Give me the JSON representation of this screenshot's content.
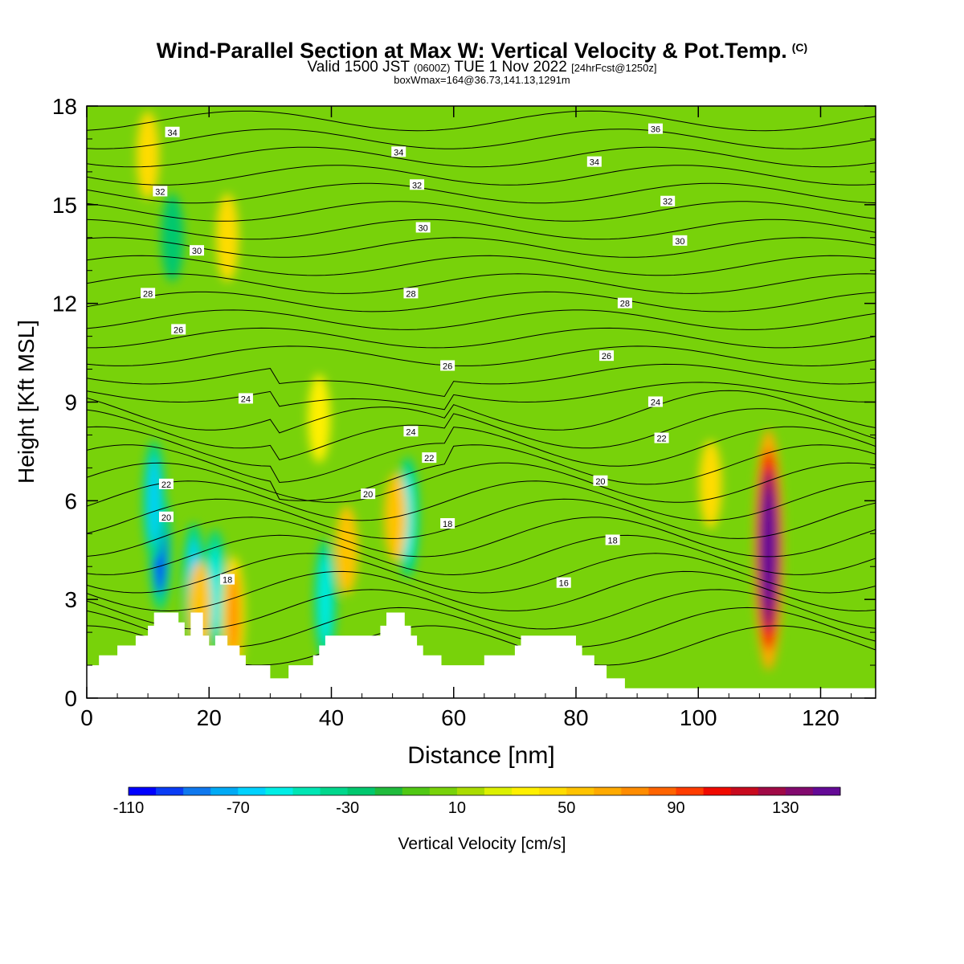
{
  "title": {
    "main": "Wind-Parallel Section at Max W: Vertical Velocity & Pot.Temp.",
    "copyright": "(C)",
    "valid_prefix": "Valid 1500 JST",
    "valid_utc": "(0600Z)",
    "valid_date": "TUE 1 Nov 2022",
    "forecast": "[24hrFcst@1250z]",
    "boxwmax": "boxWmax=164@36.73,141.13,1291m"
  },
  "chart_data": {
    "type": "heatmap",
    "xlabel": "Distance [nm]",
    "ylabel": "Height [Kft MSL]",
    "xlim": [
      0,
      129
    ],
    "ylim": [
      0,
      18
    ],
    "xticks": [
      0,
      20,
      40,
      60,
      80,
      100,
      120
    ],
    "yticks": [
      0,
      3,
      6,
      9,
      12,
      15,
      18
    ],
    "colorbar": {
      "label": "Vertical Velocity [cm/s]",
      "range": [
        -110,
        150
      ],
      "step": 10,
      "tick_labels": [
        -110,
        -70,
        -30,
        10,
        50,
        90,
        130
      ],
      "colors": [
        "#0000ff",
        "#0a3cf5",
        "#0f78ee",
        "#00aaf5",
        "#00d2ff",
        "#00eee6",
        "#00e6b4",
        "#00d78c",
        "#00c86e",
        "#20bb3c",
        "#50c814",
        "#78d20a",
        "#aadc00",
        "#dcf000",
        "#fff000",
        "#ffdc00",
        "#ffc300",
        "#ffaa00",
        "#ff8c00",
        "#ff6400",
        "#ff3c00",
        "#f00a00",
        "#c80a1e",
        "#a00a46",
        "#820a6e",
        "#640a96"
      ]
    },
    "background_value_cm_s": 0,
    "terrain_kft": [
      [
        0,
        1.0
      ],
      [
        2,
        1.0
      ],
      [
        2,
        1.3
      ],
      [
        5,
        1.3
      ],
      [
        5,
        1.6
      ],
      [
        8,
        1.6
      ],
      [
        8,
        1.9
      ],
      [
        10,
        1.9
      ],
      [
        10,
        2.2
      ],
      [
        11,
        2.2
      ],
      [
        11,
        2.6
      ],
      [
        15,
        2.6
      ],
      [
        15,
        2.3
      ],
      [
        16,
        2.3
      ],
      [
        16,
        1.9
      ],
      [
        17,
        1.9
      ],
      [
        17,
        2.6
      ],
      [
        19,
        2.6
      ],
      [
        19,
        1.9
      ],
      [
        20,
        1.9
      ],
      [
        20,
        1.6
      ],
      [
        21,
        1.6
      ],
      [
        21,
        1.9
      ],
      [
        23,
        1.9
      ],
      [
        23,
        1.6
      ],
      [
        25,
        1.6
      ],
      [
        25,
        1.3
      ],
      [
        26,
        1.3
      ],
      [
        26,
        1.0
      ],
      [
        30,
        1.0
      ],
      [
        30,
        0.6
      ],
      [
        33,
        0.6
      ],
      [
        33,
        1.0
      ],
      [
        37,
        1.0
      ],
      [
        37,
        1.3
      ],
      [
        38,
        1.3
      ],
      [
        38,
        1.6
      ],
      [
        39,
        1.6
      ],
      [
        39,
        1.9
      ],
      [
        48,
        1.9
      ],
      [
        48,
        2.2
      ],
      [
        49,
        2.2
      ],
      [
        49,
        2.6
      ],
      [
        52,
        2.6
      ],
      [
        52,
        2.2
      ],
      [
        53,
        2.2
      ],
      [
        53,
        1.9
      ],
      [
        54,
        1.9
      ],
      [
        54,
        1.6
      ],
      [
        55,
        1.6
      ],
      [
        55,
        1.3
      ],
      [
        58,
        1.3
      ],
      [
        58,
        1.0
      ],
      [
        65,
        1.0
      ],
      [
        65,
        1.3
      ],
      [
        70,
        1.3
      ],
      [
        70,
        1.6
      ],
      [
        71,
        1.6
      ],
      [
        71,
        1.9
      ],
      [
        80,
        1.9
      ],
      [
        80,
        1.6
      ],
      [
        81,
        1.6
      ],
      [
        81,
        1.3
      ],
      [
        83,
        1.3
      ],
      [
        83,
        1.0
      ],
      [
        85,
        1.0
      ],
      [
        85,
        0.6
      ],
      [
        88,
        0.6
      ],
      [
        88,
        0.3
      ],
      [
        129,
        0.3
      ]
    ],
    "vertical_velocity_features": [
      {
        "x": 12,
        "z": 4.5,
        "w": -110
      },
      {
        "x": 11,
        "z": 6.0,
        "w": -70
      },
      {
        "x": 17.5,
        "z": 3.5,
        "w": -70
      },
      {
        "x": 21,
        "z": 3.3,
        "w": -60
      },
      {
        "x": 39,
        "z": 3.0,
        "w": -60
      },
      {
        "x": 52.5,
        "z": 5.5,
        "w": -60
      },
      {
        "x": 14,
        "z": 14.0,
        "w": -30
      },
      {
        "x": 18.5,
        "z": 2.8,
        "w": 50
      },
      {
        "x": 24,
        "z": 2.5,
        "w": 70
      },
      {
        "x": 42.5,
        "z": 4.5,
        "w": 50
      },
      {
        "x": 50.5,
        "z": 5.5,
        "w": 50
      },
      {
        "x": 10,
        "z": 16.5,
        "w": 40
      },
      {
        "x": 23,
        "z": 14.0,
        "w": 40
      },
      {
        "x": 38,
        "z": 8.5,
        "w": 30
      },
      {
        "x": 102,
        "z": 6.5,
        "w": 40
      },
      {
        "x": 111.5,
        "z": 4.5,
        "w": 164
      }
    ],
    "theta_contour_labels": [
      {
        "text": "34",
        "x": 14,
        "z": 17.2
      },
      {
        "text": "32",
        "x": 12,
        "z": 15.4
      },
      {
        "text": "30",
        "x": 18,
        "z": 13.6
      },
      {
        "text": "28",
        "x": 10,
        "z": 12.3
      },
      {
        "text": "26",
        "x": 15,
        "z": 11.2
      },
      {
        "text": "24",
        "x": 26,
        "z": 9.1
      },
      {
        "text": "22",
        "x": 13,
        "z": 6.5
      },
      {
        "text": "20",
        "x": 13,
        "z": 5.5
      },
      {
        "text": "18",
        "x": 23,
        "z": 3.6
      },
      {
        "text": "34",
        "x": 51,
        "z": 16.6
      },
      {
        "text": "32",
        "x": 54,
        "z": 15.6
      },
      {
        "text": "30",
        "x": 55,
        "z": 14.3
      },
      {
        "text": "28",
        "x": 53,
        "z": 12.3
      },
      {
        "text": "26",
        "x": 59,
        "z": 10.1
      },
      {
        "text": "24",
        "x": 53,
        "z": 8.1
      },
      {
        "text": "22",
        "x": 56,
        "z": 7.3
      },
      {
        "text": "20",
        "x": 46,
        "z": 6.2
      },
      {
        "text": "18",
        "x": 59,
        "z": 5.3
      },
      {
        "text": "16",
        "x": 78,
        "z": 3.5
      },
      {
        "text": "36",
        "x": 93,
        "z": 17.3
      },
      {
        "text": "34",
        "x": 83,
        "z": 16.3
      },
      {
        "text": "32",
        "x": 95,
        "z": 15.1
      },
      {
        "text": "30",
        "x": 97,
        "z": 13.9
      },
      {
        "text": "28",
        "x": 88,
        "z": 12.0
      },
      {
        "text": "26",
        "x": 85,
        "z": 10.4
      },
      {
        "text": "24",
        "x": 93,
        "z": 9.0
      },
      {
        "text": "22",
        "x": 94,
        "z": 7.9
      },
      {
        "text": "20",
        "x": 84,
        "z": 6.6
      },
      {
        "text": "18",
        "x": 86,
        "z": 4.8
      }
    ]
  }
}
